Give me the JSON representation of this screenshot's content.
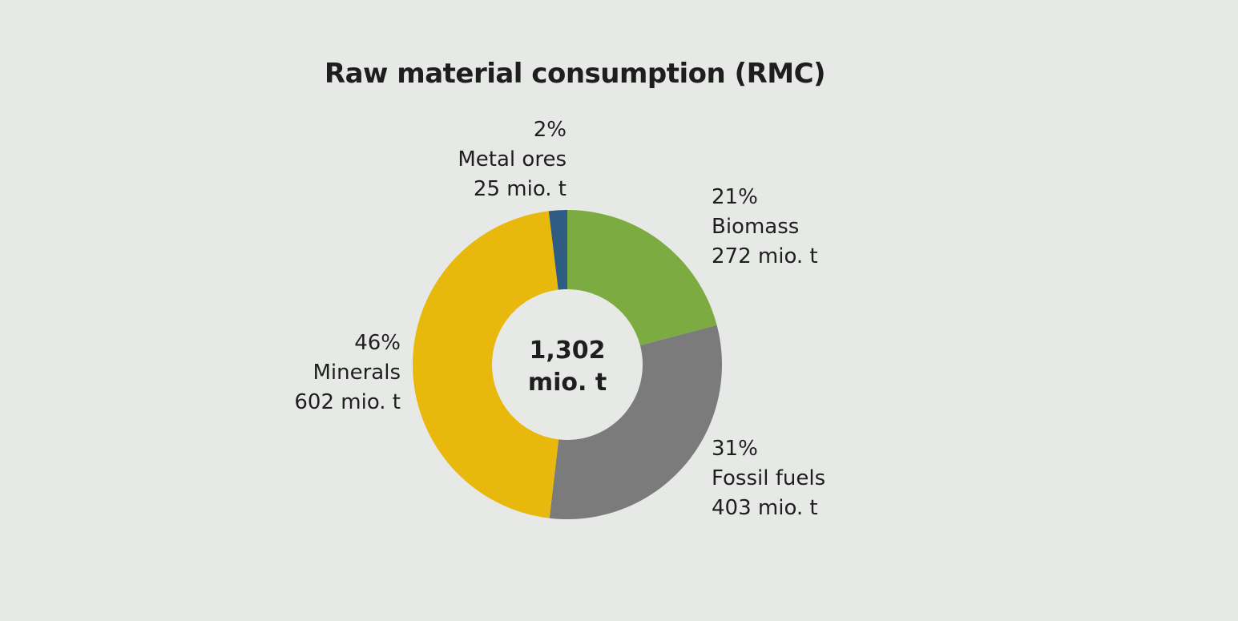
{
  "chart_data": {
    "type": "pie",
    "title": "Raw material consumption (RMC)",
    "center_label": {
      "value": "1,302",
      "unit": "mio. t"
    },
    "total": 1302,
    "unit": "mio. t",
    "slices": [
      {
        "name": "Biomass",
        "value": 272,
        "percent_label": "21%",
        "value_label": "272 mio. t",
        "color": "#7cac41"
      },
      {
        "name": "Fossil fuels",
        "value": 403,
        "percent_label": "31%",
        "value_label": "403 mio. t",
        "color": "#7b7b7c"
      },
      {
        "name": "Minerals",
        "value": 602,
        "percent_label": "46%",
        "value_label": "602 mio. t",
        "color": "#e8b80d"
      },
      {
        "name": "Metal ores",
        "value": 25,
        "percent_label": "2%",
        "value_label": "25 mio. t",
        "color": "#2e5c82"
      }
    ]
  }
}
